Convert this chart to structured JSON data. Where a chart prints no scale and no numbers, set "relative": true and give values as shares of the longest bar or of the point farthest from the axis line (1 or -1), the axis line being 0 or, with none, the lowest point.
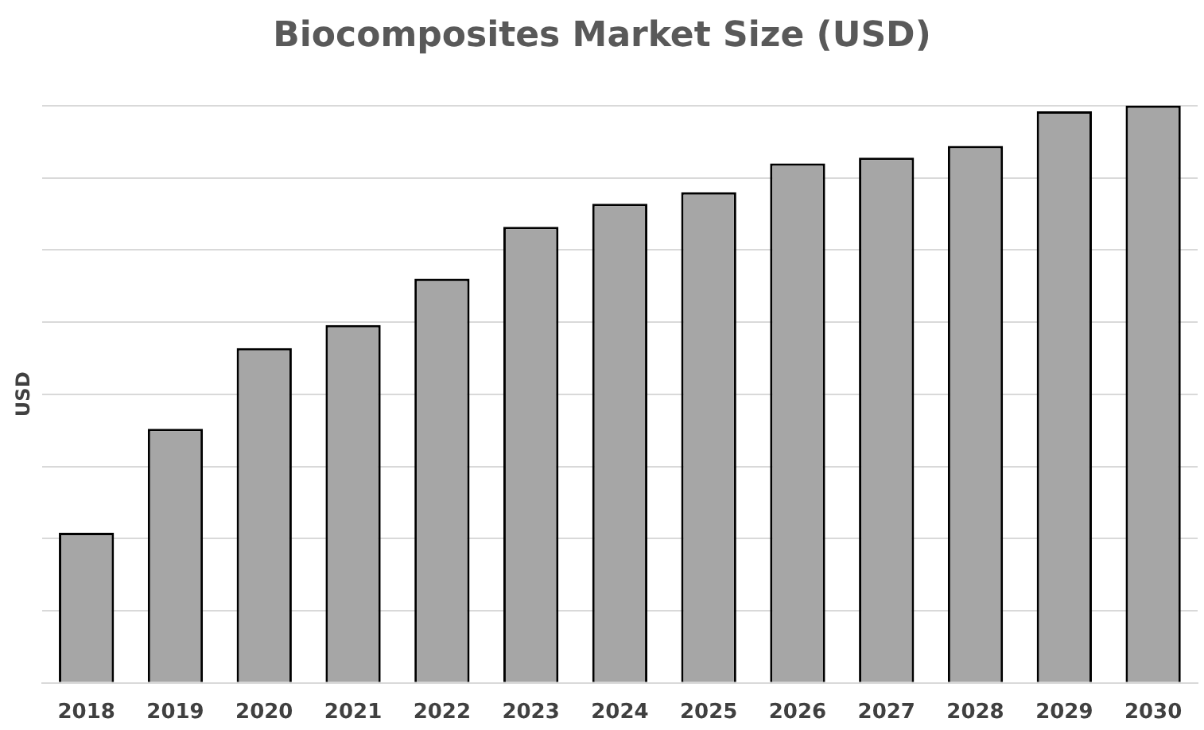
{
  "chart_data": {
    "type": "bar",
    "title": "Biocomposites Market Size (USD)",
    "ylabel": "USD",
    "categories": [
      "2018",
      "2019",
      "2020",
      "2021",
      "2022",
      "2023",
      "2024",
      "2025",
      "2026",
      "2027",
      "2028",
      "2029",
      "2030"
    ],
    "values": [
      0.26,
      0.44,
      0.58,
      0.62,
      0.7,
      0.79,
      0.83,
      0.85,
      0.9,
      0.91,
      0.93,
      0.99,
      1
    ],
    "color": "#a6a6a6",
    "relative": true,
    "grid": "y",
    "legend": false
  }
}
